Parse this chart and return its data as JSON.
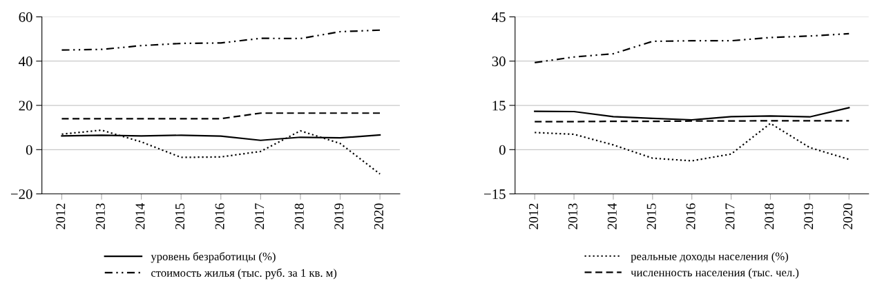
{
  "chart_data": [
    {
      "type": "line",
      "categories": [
        "2012",
        "2013",
        "2014",
        "2015",
        "2016",
        "2017",
        "2018",
        "2019",
        "2020"
      ],
      "ylim": [
        -20,
        60
      ],
      "yticks": [
        {
          "value": -20,
          "label": "−20"
        },
        0,
        20,
        40,
        60
      ],
      "grid": "y",
      "legend": "bottom",
      "series": [
        {
          "name": "уровень безработицы (%)",
          "color": "#000000",
          "line_style": "solid",
          "values": [
            6.2,
            6.5,
            6.2,
            6.5,
            6.1,
            4.2,
            5.6,
            5.3,
            6.6
          ]
        },
        {
          "name": "стоимость жилья (тыс. руб. за 1 кв. м)",
          "color": "#000000",
          "line_style": "dashdot",
          "values": [
            45,
            45.3,
            47,
            48,
            48.2,
            50.3,
            50.2,
            53.3,
            54
          ]
        },
        {
          "color": "#000000",
          "line_style": "dotted",
          "values": [
            7,
            8.8,
            3.5,
            -3.5,
            -3.3,
            -0.8,
            8.5,
            2.8,
            -11
          ]
        },
        {
          "color": "#000000",
          "line_style": "dashed",
          "values": [
            14,
            14,
            14,
            14,
            14,
            16.5,
            16.5,
            16.5,
            16.5
          ]
        }
      ]
    },
    {
      "type": "line",
      "categories": [
        "2012",
        "2013",
        "2014",
        "2015",
        "2016",
        "2017",
        "2018",
        "2019",
        "2020"
      ],
      "ylim": [
        -15,
        45
      ],
      "yticks": [
        {
          "value": -15,
          "label": "−15"
        },
        0,
        15,
        30,
        45
      ],
      "grid": "y",
      "legend": "bottom",
      "series": [
        {
          "name": "реальные доходы населения (%)",
          "color": "#000000",
          "line_style": "dotted",
          "values": [
            5.8,
            5.2,
            1.6,
            -2.9,
            -3.8,
            -1.5,
            8.9,
            0.7,
            -3.3
          ]
        },
        {
          "name": "численность населения (тыс. чел.)",
          "color": "#000000",
          "line_style": "dashed",
          "values": [
            9.5,
            9.5,
            9.6,
            9.6,
            9.7,
            9.7,
            9.8,
            9.8,
            9.8
          ]
        },
        {
          "color": "#000000",
          "line_style": "solid",
          "values": [
            13,
            12.9,
            11.2,
            10.6,
            10.1,
            11.2,
            11.4,
            11.1,
            14.2
          ]
        },
        {
          "color": "#000000",
          "line_style": "dashdot",
          "values": [
            29.5,
            31.4,
            32.5,
            36.7,
            36.9,
            36.9,
            38,
            38.5,
            39.3
          ]
        }
      ]
    }
  ]
}
